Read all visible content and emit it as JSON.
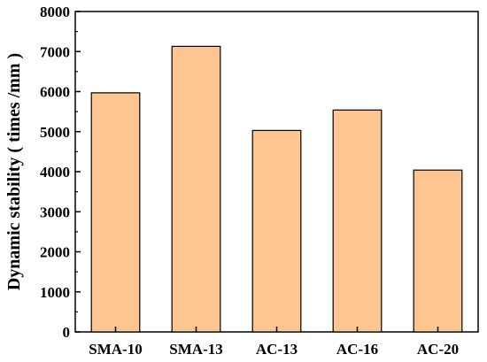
{
  "chart_data": {
    "type": "bar",
    "title": "",
    "xlabel": "",
    "ylabel": "Dynamic stability ( times /mm )",
    "categories": [
      "SMA-10",
      "SMA-13",
      "AC-13",
      "AC-16",
      "AC-20"
    ],
    "values": [
      5970,
      7130,
      5030,
      5540,
      4040
    ],
    "ylim": [
      0,
      8000
    ],
    "yticks": [
      0,
      1000,
      2000,
      3000,
      4000,
      5000,
      6000,
      7000,
      8000
    ],
    "grid": false,
    "legend": "none",
    "colors": {
      "bar_fill": "#FDC590",
      "bar_stroke": "#000000",
      "axis": "#000000"
    }
  }
}
